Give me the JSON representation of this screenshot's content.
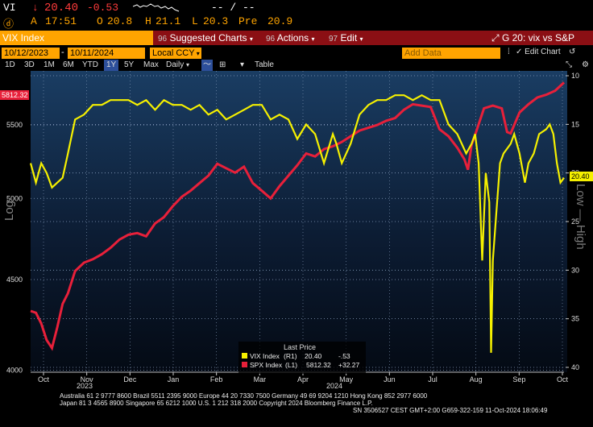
{
  "ticker": {
    "symbol": "VI",
    "arrow": "↓",
    "last": "20.40",
    "change": "-0.53",
    "dash1": "-- / --",
    "badge": "ⓓ",
    "a_label": "A",
    "time": "17:51",
    "open_label": "O",
    "open": "20.8",
    "high_label": "H",
    "high": "21.1",
    "low_label": "L",
    "low": "20.3",
    "pre_label": "Pre",
    "pre": "20.9"
  },
  "titlebar": {
    "security": "VIX Index",
    "menu1_num": "96",
    "menu1": "Suggested Charts",
    "menu2_num": "96",
    "menu2": "Actions",
    "menu3_num": "97",
    "menu3": "Edit",
    "chart_name": "G 20: vix vs S&P"
  },
  "datebar": {
    "start": "10/12/2023",
    "end": "10/11/2024",
    "currency": "Local CCY",
    "add_data_placeholder": "Add Data",
    "edit_chart": "Edit Chart"
  },
  "tabs": [
    "1D",
    "3D",
    "1M",
    "6M",
    "YTD",
    "1Y",
    "5Y",
    "Max",
    "Daily",
    "Table"
  ],
  "colors": {
    "vix": "#f5f000",
    "spx": "#e8203a",
    "accent": "#ffa400",
    "titlebar": "#8b0f14"
  },
  "chart_data": {
    "type": "line",
    "left_axis": {
      "label": "Log",
      "ticks": [
        4000,
        4500,
        5000,
        5500
      ],
      "range": [
        3990,
        5900
      ],
      "scale": "log"
    },
    "right_axis": {
      "label": "Low — High",
      "ticks": [
        10,
        15,
        20,
        25,
        30,
        35,
        40
      ],
      "range": [
        9.5,
        40.5
      ],
      "inverted": true
    },
    "x_ticks": [
      "Oct",
      "Nov",
      "Dec",
      "Jan",
      "Feb",
      "Mar",
      "Apr",
      "May",
      "Jun",
      "Jul",
      "Aug",
      "Sep",
      "Oct"
    ],
    "years": [
      "2023",
      "2024"
    ],
    "last_label_left": "5812.32",
    "last_label_right": "20.40",
    "legend_title": "Last Price",
    "legend": [
      {
        "name": "VIX Index",
        "axis": "(R1)",
        "value": "20.40",
        "change": "-.53"
      },
      {
        "name": "SPX Index",
        "axis": "(L1)",
        "value": "5812.32",
        "change": "+32.27"
      }
    ],
    "series": [
      {
        "name": "VIX Index",
        "axis": "right",
        "points": [
          [
            0,
            19
          ],
          [
            3,
            21
          ],
          [
            6,
            19
          ],
          [
            9,
            20
          ],
          [
            12,
            21.5
          ],
          [
            15,
            21
          ],
          [
            18,
            20.5
          ],
          [
            21,
            18
          ],
          [
            25,
            14.5
          ],
          [
            30,
            14
          ],
          [
            35,
            13
          ],
          [
            40,
            13
          ],
          [
            45,
            12.5
          ],
          [
            50,
            12.5
          ],
          [
            55,
            12.5
          ],
          [
            60,
            13
          ],
          [
            65,
            12.5
          ],
          [
            70,
            13.5
          ],
          [
            75,
            12.5
          ],
          [
            80,
            13
          ],
          [
            85,
            13
          ],
          [
            90,
            13.5
          ],
          [
            95,
            13
          ],
          [
            100,
            14
          ],
          [
            105,
            13.5
          ],
          [
            110,
            14.5
          ],
          [
            115,
            14
          ],
          [
            120,
            13.5
          ],
          [
            125,
            13
          ],
          [
            130,
            13
          ],
          [
            135,
            14.5
          ],
          [
            140,
            14
          ],
          [
            145,
            14.5
          ],
          [
            150,
            16.5
          ],
          [
            155,
            15
          ],
          [
            160,
            16
          ],
          [
            165,
            19
          ],
          [
            170,
            16
          ],
          [
            172,
            17
          ],
          [
            175,
            19
          ],
          [
            180,
            17
          ],
          [
            185,
            14
          ],
          [
            190,
            13
          ],
          [
            195,
            12.5
          ],
          [
            200,
            12.5
          ],
          [
            205,
            12
          ],
          [
            210,
            12
          ],
          [
            215,
            12.5
          ],
          [
            220,
            12
          ],
          [
            225,
            12.5
          ],
          [
            230,
            12.5
          ],
          [
            235,
            15
          ],
          [
            240,
            16
          ],
          [
            245,
            18
          ],
          [
            248,
            17
          ],
          [
            250,
            16
          ],
          [
            252,
            19
          ],
          [
            254,
            29
          ],
          [
            256,
            20
          ],
          [
            258,
            23
          ],
          [
            259,
            38.5
          ],
          [
            260,
            29
          ],
          [
            262,
            24
          ],
          [
            264,
            19
          ],
          [
            266,
            18
          ],
          [
            270,
            17
          ],
          [
            272,
            16
          ],
          [
            275,
            18
          ],
          [
            278,
            21
          ],
          [
            280,
            19
          ],
          [
            283,
            18
          ],
          [
            286,
            16
          ],
          [
            290,
            15.5
          ],
          [
            292,
            15
          ],
          [
            294,
            16
          ],
          [
            296,
            19
          ],
          [
            298,
            21
          ],
          [
            300,
            20.5
          ]
        ]
      },
      {
        "name": "SPX Index",
        "axis": "left",
        "points": [
          [
            0,
            4320
          ],
          [
            3,
            4310
          ],
          [
            6,
            4250
          ],
          [
            9,
            4160
          ],
          [
            12,
            4117
          ],
          [
            15,
            4230
          ],
          [
            18,
            4360
          ],
          [
            21,
            4420
          ],
          [
            25,
            4550
          ],
          [
            30,
            4600
          ],
          [
            35,
            4620
          ],
          [
            40,
            4650
          ],
          [
            45,
            4690
          ],
          [
            50,
            4740
          ],
          [
            55,
            4770
          ],
          [
            60,
            4780
          ],
          [
            65,
            4760
          ],
          [
            70,
            4840
          ],
          [
            75,
            4880
          ],
          [
            80,
            4950
          ],
          [
            85,
            5010
          ],
          [
            90,
            5050
          ],
          [
            95,
            5100
          ],
          [
            100,
            5150
          ],
          [
            105,
            5230
          ],
          [
            110,
            5200
          ],
          [
            115,
            5170
          ],
          [
            120,
            5210
          ],
          [
            125,
            5100
          ],
          [
            130,
            5050
          ],
          [
            135,
            5000
          ],
          [
            140,
            5080
          ],
          [
            145,
            5150
          ],
          [
            150,
            5220
          ],
          [
            155,
            5300
          ],
          [
            160,
            5280
          ],
          [
            165,
            5330
          ],
          [
            170,
            5350
          ],
          [
            175,
            5380
          ],
          [
            180,
            5420
          ],
          [
            185,
            5460
          ],
          [
            190,
            5480
          ],
          [
            195,
            5500
          ],
          [
            200,
            5530
          ],
          [
            205,
            5550
          ],
          [
            210,
            5610
          ],
          [
            215,
            5650
          ],
          [
            220,
            5640
          ],
          [
            225,
            5630
          ],
          [
            230,
            5470
          ],
          [
            235,
            5420
          ],
          [
            240,
            5340
          ],
          [
            244,
            5260
          ],
          [
            246,
            5190
          ],
          [
            248,
            5360
          ],
          [
            250,
            5430
          ],
          [
            255,
            5620
          ],
          [
            260,
            5640
          ],
          [
            265,
            5620
          ],
          [
            268,
            5450
          ],
          [
            270,
            5440
          ],
          [
            275,
            5590
          ],
          [
            280,
            5650
          ],
          [
            285,
            5700
          ],
          [
            290,
            5720
          ],
          [
            295,
            5750
          ],
          [
            300,
            5812
          ]
        ]
      }
    ]
  },
  "footer": {
    "line1": "Australia 61 2 9777 8600 Brazil 5511 2395 9000 Europe 44 20 7330 7500 Germany 49 69 9204 1210 Hong Kong 852 2977 6000",
    "line2": "Japan 81 3 4565 8900        Singapore 65 6212 1000      U.S. 1 212 318 2000          Copyright 2024 Bloomberg Finance L.P.",
    "line3": "SN 3506527 CEST GMT+2:00 G659-322-159 11-Oct-2024 18:06:49"
  }
}
